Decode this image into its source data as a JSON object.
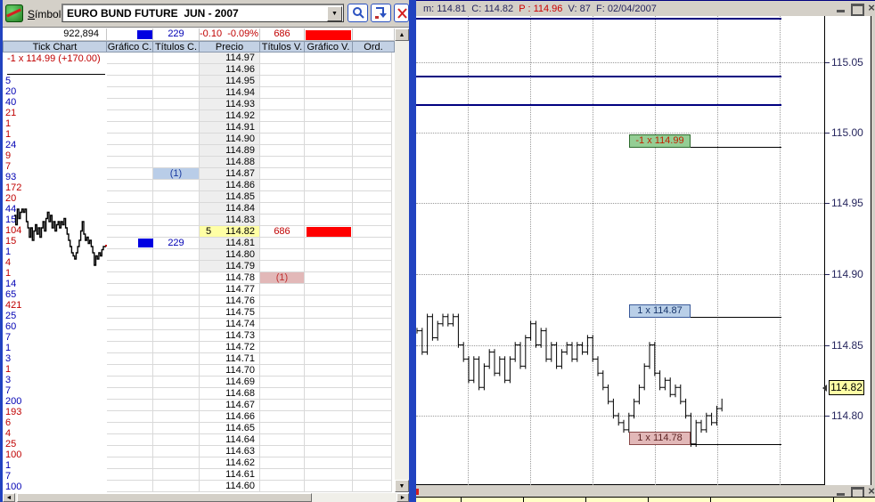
{
  "colors": {
    "window_bg": "#d4d0c8",
    "buy_text": "#0000b4",
    "sell_text": "#c00000",
    "blue_fill": "#0000e1",
    "red_fill": "#ff0000",
    "last_price_bg": "#ffffa5",
    "ladder_shade": "#eeeeee",
    "header_bg": "#c3d1e4",
    "navy_line": "#000080",
    "green_box": "#94ce94",
    "blue_box": "#b9cfe8",
    "pink_box": "#e2b8b8",
    "divider_blue": "#2143c0"
  },
  "left_window": {
    "titlebar": {
      "symbol_s": "S",
      "symbol_rest": "ímbolo",
      "symbol_value": "EURO BUND FUTURE  JUN - 2007"
    },
    "summary": {
      "volume": "922,894",
      "titulos_c": "229",
      "change": "-0.10",
      "change_pct": "-0.09%",
      "titulos_v": "686"
    },
    "columns": [
      "Tick Chart",
      "Gráfico C.",
      "Títulos C.",
      "Precio",
      "Títulos V.",
      "Gráfico V.",
      "Ord."
    ],
    "tick_panel": {
      "last_trade": "-1 x 114.99 (+170.00)",
      "trades": [
        {
          "v": "5",
          "c": "b"
        },
        {
          "v": "20",
          "c": "b"
        },
        {
          "v": "40",
          "c": "b"
        },
        {
          "v": "21",
          "c": "s"
        },
        {
          "v": "1",
          "c": "s"
        },
        {
          "v": "1",
          "c": "s"
        },
        {
          "v": "24",
          "c": "b"
        },
        {
          "v": "9",
          "c": "s"
        },
        {
          "v": "7",
          "c": "s"
        },
        {
          "v": "93",
          "c": "b"
        },
        {
          "v": "172",
          "c": "s"
        },
        {
          "v": "20",
          "c": "s"
        },
        {
          "v": "44",
          "c": "b"
        },
        {
          "v": "15",
          "c": "b"
        },
        {
          "v": "104",
          "c": "s"
        },
        {
          "v": "15",
          "c": "s"
        },
        {
          "v": "1",
          "c": "b"
        },
        {
          "v": "4",
          "c": "s"
        },
        {
          "v": "1",
          "c": "s"
        },
        {
          "v": "14",
          "c": "b"
        },
        {
          "v": "65",
          "c": "b"
        },
        {
          "v": "421",
          "c": "s"
        },
        {
          "v": "25",
          "c": "b"
        },
        {
          "v": "60",
          "c": "b"
        },
        {
          "v": "7",
          "c": "b"
        },
        {
          "v": "1",
          "c": "b"
        },
        {
          "v": "3",
          "c": "b"
        },
        {
          "v": "1",
          "c": "s"
        },
        {
          "v": "3",
          "c": "b"
        },
        {
          "v": "7",
          "c": "b"
        },
        {
          "v": "200",
          "c": "b"
        },
        {
          "v": "193",
          "c": "s"
        },
        {
          "v": "6",
          "c": "s"
        },
        {
          "v": "4",
          "c": "s"
        },
        {
          "v": "25",
          "c": "s"
        },
        {
          "v": "100",
          "c": "s"
        },
        {
          "v": "1",
          "c": "b"
        },
        {
          "v": "7",
          "c": "b"
        },
        {
          "v": "100",
          "c": "b"
        }
      ]
    },
    "ladder": {
      "prices": [
        "114.97",
        "114.96",
        "114.95",
        "114.94",
        "114.93",
        "114.92",
        "114.91",
        "114.90",
        "114.89",
        "114.88",
        "114.87",
        "114.86",
        "114.85",
        "114.84",
        "114.83",
        "114.82",
        "114.81",
        "114.80",
        "114.79",
        "114.78",
        "114.77",
        "114.76",
        "114.75",
        "114.74",
        "114.73",
        "114.72",
        "114.71",
        "114.70",
        "114.69",
        "114.68",
        "114.67",
        "114.66",
        "114.65",
        "114.64",
        "114.63",
        "114.62",
        "114.61",
        "114.60"
      ],
      "shaded_through": "114.79",
      "ask_note": {
        "price": "114.87",
        "text": "(1)"
      },
      "last_row": {
        "price": "114.82",
        "size": "5",
        "titulos_v": "686"
      },
      "bid_row": {
        "price": "114.81",
        "titulos_c": "229"
      },
      "bid_note": {
        "price": "114.78",
        "text": "(1)"
      }
    }
  },
  "right_window": {
    "header": {
      "m_label": "m:",
      "m": "114.81",
      "c_label": "C:",
      "c": "114.82",
      "p_label": "P :",
      "p": "114.96",
      "v_label": "V:",
      "v": "87",
      "f_label": "F:",
      "f": "02/04/2007"
    },
    "axis_ticks": [
      "115.05",
      "115.00",
      "114.95",
      "114.90",
      "114.85",
      "114.80"
    ],
    "current_price": "114.82",
    "levels": [
      {
        "text": "-1 x 114.99",
        "price": 114.99,
        "style": "green"
      },
      {
        "text": "1 x 114.87",
        "price": 114.87,
        "style": "blue"
      },
      {
        "text": "1 x 114.78",
        "price": 114.78,
        "style": "pink"
      }
    ],
    "nav_lines_prices": [
      115.081,
      115.04,
      115.02
    ]
  },
  "chart_data": {
    "type": "line",
    "title": "EURO BUND FUTURE JUN - 2007 tick chart",
    "ylabel": "price",
    "ylim": [
      114.76,
      115.1
    ],
    "axis_tick_values": [
      115.05,
      115.0,
      114.95,
      114.9,
      114.85,
      114.8
    ],
    "levels": [
      114.99,
      114.87,
      114.78
    ],
    "current": 114.82,
    "closes": [
      114.86,
      114.845,
      114.87,
      114.855,
      114.865,
      114.87,
      114.865,
      114.87,
      114.85,
      114.84,
      114.825,
      114.84,
      114.82,
      114.835,
      114.845,
      114.83,
      114.84,
      114.825,
      114.84,
      114.85,
      114.835,
      114.855,
      114.865,
      114.85,
      114.86,
      114.84,
      114.85,
      114.835,
      114.845,
      114.85,
      114.84,
      114.85,
      114.845,
      114.855,
      114.84,
      114.83,
      114.82,
      114.81,
      114.8,
      114.795,
      114.79,
      114.8,
      114.81,
      114.82,
      114.835,
      114.85,
      114.83,
      114.82,
      114.825,
      114.815,
      114.82,
      114.81,
      114.8,
      114.78,
      114.795,
      114.79,
      114.8,
      114.795,
      114.805,
      114.81
    ]
  }
}
